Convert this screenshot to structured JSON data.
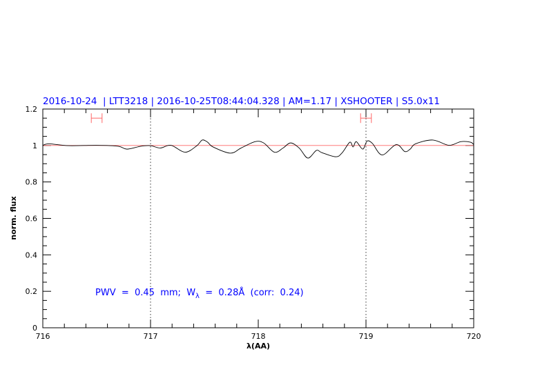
{
  "chart_data": {
    "type": "line",
    "title": "2016-10-24  | LTT3218 | 2016-10-25T08:44:04.328 | AM=1.17 | XSHOOTER | S5.0x11",
    "xlabel": "λ(AA)",
    "ylabel": "norm. flux",
    "xlim": [
      716,
      720
    ],
    "ylim": [
      0,
      1.2
    ],
    "xticks": [
      "716",
      "717",
      "718",
      "719",
      "720"
    ],
    "yticks": [
      "0",
      "0.2",
      "0.4",
      "0.6",
      "0.8",
      "1",
      "1.2"
    ],
    "grid": false,
    "reference_line": {
      "y": 1,
      "color": "#ff6666"
    },
    "vertical_markers": {
      "x": [
        717,
        719
      ],
      "style": "dotted"
    },
    "intervals": {
      "color": "#ff6666",
      "y": 1.15,
      "ranges": [
        [
          716.45,
          716.55
        ],
        [
          718.95,
          719.05
        ]
      ]
    },
    "annotation": {
      "pre": "PWV  =  0.45  mm;  W",
      "sub": "λ",
      "post": "  =  0.28Å  (corr:  0.24)",
      "color": "#0000ff"
    },
    "title_color": "#0000ff",
    "series": [
      {
        "color": "#000000",
        "x": [
          716.0,
          716.06,
          716.24,
          716.5,
          716.7,
          716.78,
          716.91,
          717.0,
          717.09,
          717.19,
          717.32,
          717.43,
          717.48,
          717.53,
          717.58,
          717.74,
          717.84,
          717.97,
          718.05,
          718.15,
          718.23,
          718.3,
          718.38,
          718.46,
          718.54,
          718.59,
          718.72,
          718.78,
          718.85,
          718.88,
          718.91,
          718.97,
          719.01,
          719.06,
          719.15,
          719.28,
          719.36,
          719.41,
          719.46,
          719.62,
          719.77,
          719.88,
          719.97,
          720.0
        ],
        "y": [
          1.001,
          1.009,
          0.999,
          1.001,
          0.996,
          0.98,
          0.996,
          0.999,
          0.986,
          1.001,
          0.963,
          0.999,
          1.03,
          1.018,
          0.992,
          0.958,
          0.986,
          1.021,
          1.014,
          0.963,
          0.986,
          1.014,
          0.986,
          0.931,
          0.973,
          0.961,
          0.938,
          0.961,
          1.018,
          0.992,
          1.021,
          0.98,
          1.024,
          1.011,
          0.948,
          1.005,
          0.967,
          0.98,
          1.009,
          1.03,
          1.001,
          1.021,
          1.018,
          1.005
        ]
      }
    ]
  }
}
